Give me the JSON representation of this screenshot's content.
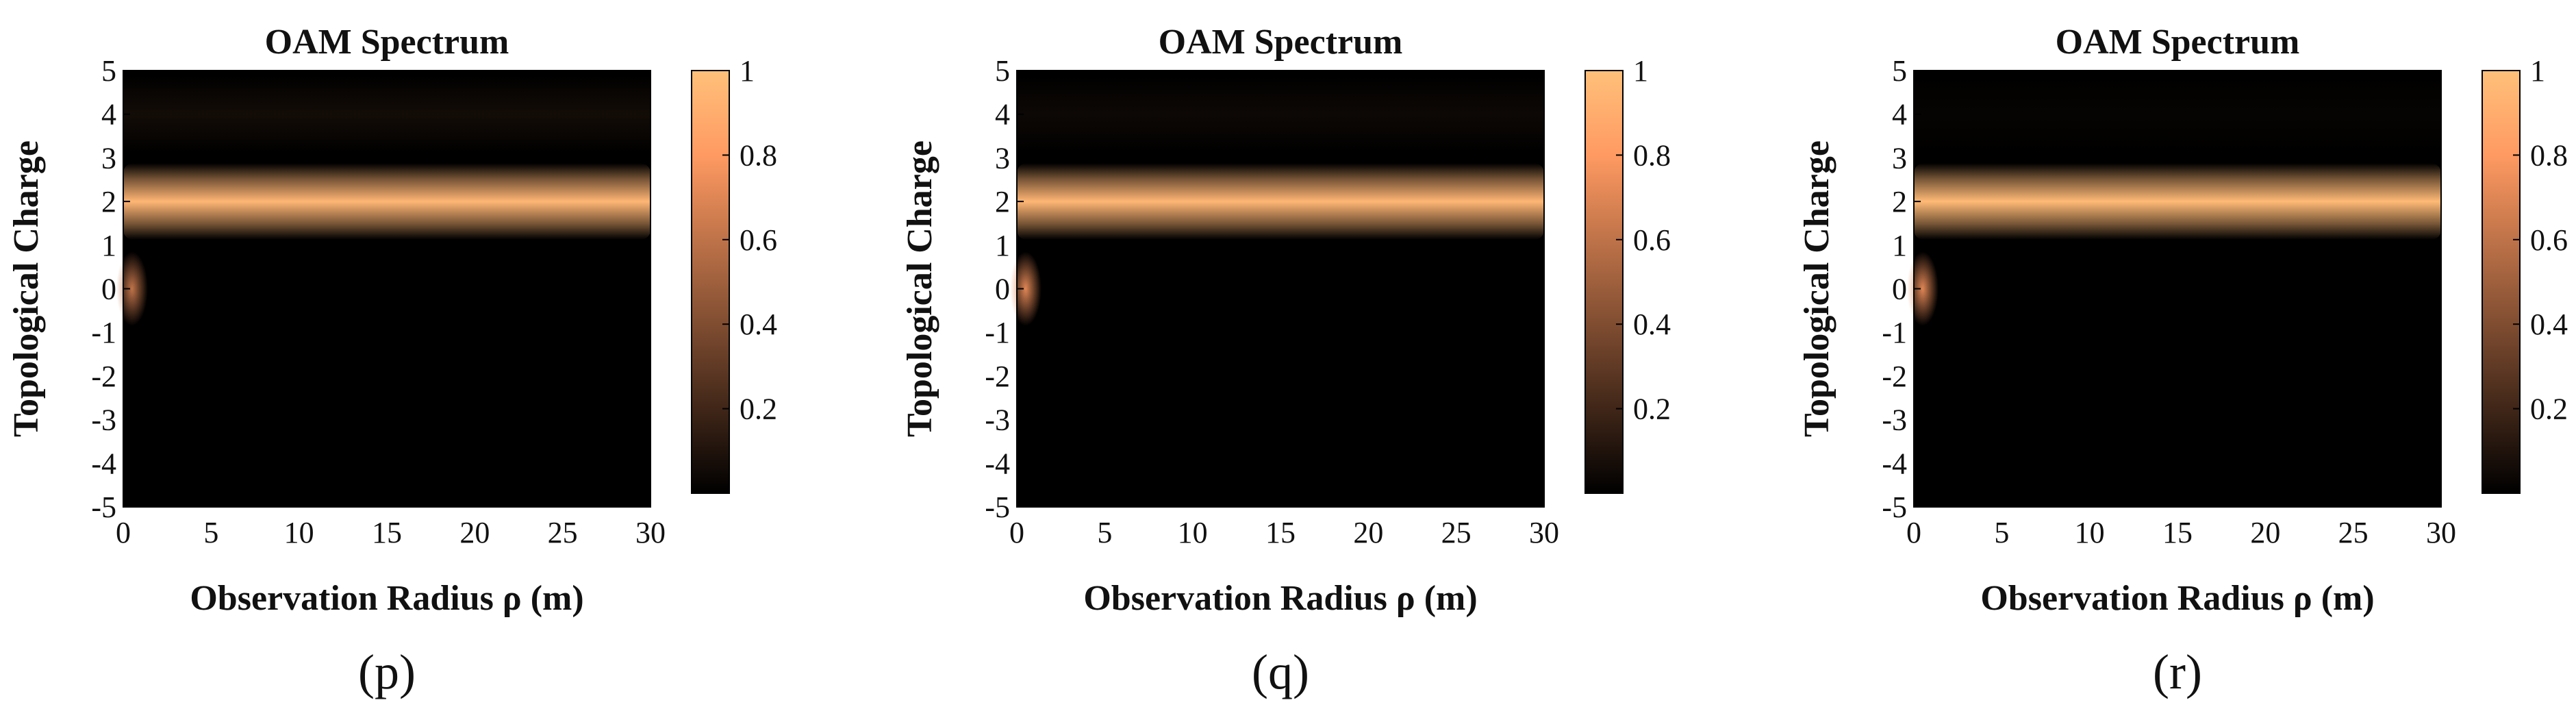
{
  "chart_data": [
    {
      "type": "heatmap",
      "panel_label": "(p)",
      "title": "OAM Spectrum",
      "xlabel": "Observation Radius ρ (m)",
      "ylabel": "Topological Charge",
      "xlim": [
        0,
        30
      ],
      "ylim": [
        -5,
        5
      ],
      "x_ticks": [
        "0",
        "5",
        "10",
        "15",
        "20",
        "25",
        "30"
      ],
      "y_ticks": [
        "-5",
        "-4",
        "-3",
        "-2",
        "-1",
        "0",
        "1",
        "2",
        "3",
        "4",
        "5"
      ],
      "colorbar": {
        "range": [
          0,
          1
        ],
        "ticks": [
          "0.2",
          "0.4",
          "0.6",
          "0.8",
          "1"
        ],
        "low_color": "#000000",
        "high_color": "#ffc07a"
      },
      "features": [
        {
          "name": "dominant mode band",
          "charge": 2,
          "x_range": [
            0,
            30
          ],
          "intensity": 0.95
        },
        {
          "name": "fundamental mode spot",
          "charge": 0,
          "x_range": [
            0,
            1
          ],
          "intensity": 0.6
        },
        {
          "name": "faint side band",
          "charge": 4,
          "x_range": [
            0,
            30
          ],
          "intensity": 0.06
        }
      ]
    },
    {
      "type": "heatmap",
      "panel_label": "(q)",
      "title": "OAM Spectrum",
      "xlabel": "Observation Radius ρ (m)",
      "ylabel": "Topological Charge",
      "xlim": [
        0,
        30
      ],
      "ylim": [
        -5,
        5
      ],
      "x_ticks": [
        "0",
        "5",
        "10",
        "15",
        "20",
        "25",
        "30"
      ],
      "y_ticks": [
        "-5",
        "-4",
        "-3",
        "-2",
        "-1",
        "0",
        "1",
        "2",
        "3",
        "4",
        "5"
      ],
      "colorbar": {
        "range": [
          0,
          1
        ],
        "ticks": [
          "0.2",
          "0.4",
          "0.6",
          "0.8",
          "1"
        ],
        "low_color": "#000000",
        "high_color": "#ffc07a"
      },
      "features": [
        {
          "name": "dominant mode band",
          "charge": 2,
          "x_range": [
            0,
            30
          ],
          "intensity": 0.95
        },
        {
          "name": "fundamental mode spot",
          "charge": 0,
          "x_range": [
            0,
            1
          ],
          "intensity": 0.7
        },
        {
          "name": "faint side band",
          "charge": 4,
          "x_range": [
            0,
            30
          ],
          "intensity": 0.04
        }
      ]
    },
    {
      "type": "heatmap",
      "panel_label": "(r)",
      "title": "OAM Spectrum",
      "xlabel": "Observation Radius ρ (m)",
      "ylabel": "Topological Charge",
      "xlim": [
        0,
        30
      ],
      "ylim": [
        -5,
        5
      ],
      "x_ticks": [
        "0",
        "5",
        "10",
        "15",
        "20",
        "25",
        "30"
      ],
      "y_ticks": [
        "-5",
        "-4",
        "-3",
        "-2",
        "-1",
        "0",
        "1",
        "2",
        "3",
        "4",
        "5"
      ],
      "colorbar": {
        "range": [
          0,
          1
        ],
        "ticks": [
          "0.2",
          "0.4",
          "0.6",
          "0.8",
          "1"
        ],
        "low_color": "#000000",
        "high_color": "#ffc07a"
      },
      "features": [
        {
          "name": "dominant mode band",
          "charge": 2,
          "x_range": [
            0,
            30
          ],
          "intensity": 0.97
        },
        {
          "name": "fundamental mode spot",
          "charge": 0,
          "x_range": [
            0,
            1
          ],
          "intensity": 0.7
        },
        {
          "name": "faint side band",
          "charge": 4,
          "x_range": [
            0,
            30
          ],
          "intensity": 0.02
        }
      ]
    }
  ]
}
